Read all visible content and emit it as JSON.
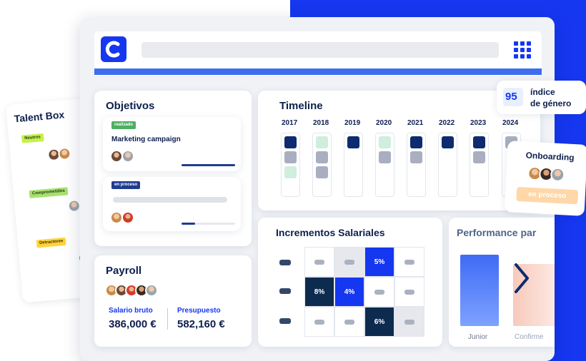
{
  "talent_box": {
    "title": "Talent Box",
    "groups": [
      {
        "label": "Neutros",
        "color": "#c6f04a"
      },
      {
        "label": "Comprometidos",
        "color": "#a8e070"
      },
      {
        "label": "Detractores",
        "color": "#ffd43a"
      }
    ]
  },
  "objetivos": {
    "title": "Objetivos",
    "items": [
      {
        "status": "realizado",
        "name": "Marketing campaign",
        "progress": 1.0
      },
      {
        "status": "en proceso",
        "name": "",
        "progress": 0.25
      }
    ]
  },
  "timeline": {
    "title": "Timeline",
    "years": [
      "2017",
      "2018",
      "2019",
      "2020",
      "2021",
      "2022",
      "2023",
      "2024"
    ]
  },
  "gender_index": {
    "value": "95",
    "label_line1": "índice",
    "label_line2": "de género"
  },
  "onboarding": {
    "title": "Onboarding",
    "status": "en proceso"
  },
  "payroll": {
    "title": "Payroll",
    "salario_label": "Salario bruto",
    "salario_value": "386,000 €",
    "presupuesto_label": "Presupuesto",
    "presupuesto_value": "582,160 €"
  },
  "incrementos": {
    "title": "Incrementos Salariales",
    "cells": [
      [
        "",
        "",
        "5%",
        ""
      ],
      [
        "8%",
        "4%",
        "",
        ""
      ],
      [
        "",
        "",
        "6%",
        ""
      ]
    ]
  },
  "performance": {
    "title": "Performance par",
    "bars": [
      {
        "label": "Junior"
      },
      {
        "label": "Confirme"
      }
    ]
  },
  "colors": {
    "brand_blue": "#1537f0",
    "navy": "#0d2b4f",
    "accent_orange": "#ffd7a8"
  }
}
